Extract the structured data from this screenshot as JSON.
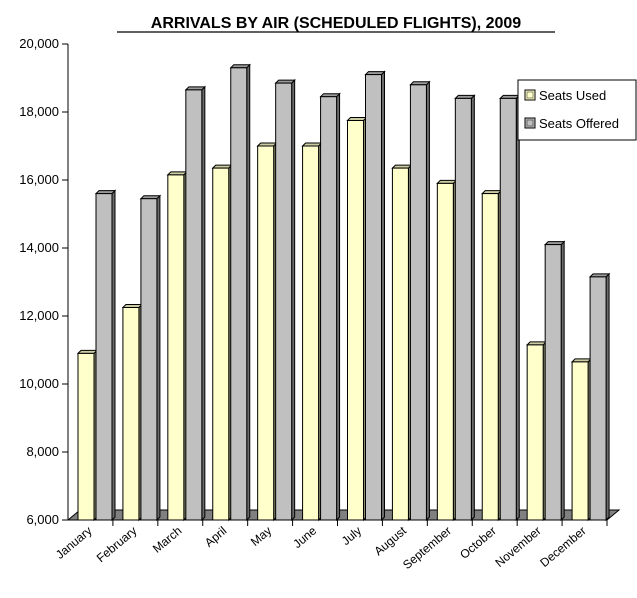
{
  "chart_data": {
    "type": "bar",
    "title": "ARRIVALS BY AIR (SCHEDULED FLIGHTS), 2009",
    "xlabel": "",
    "ylabel": "",
    "ylim": [
      6000,
      20000
    ],
    "yticks": [
      6000,
      8000,
      10000,
      12000,
      14000,
      16000,
      18000,
      20000
    ],
    "ytick_labels": [
      "6,000",
      "8,000",
      "10,000",
      "12,000",
      "14,000",
      "16,000",
      "18,000",
      "20,000"
    ],
    "categories": [
      "January",
      "February",
      "March",
      "April",
      "May",
      "June",
      "July",
      "August",
      "September",
      "October",
      "November",
      "December"
    ],
    "series": [
      {
        "name": "Seats Used",
        "color": "#FFFFCC",
        "values": [
          10900,
          12250,
          16150,
          16350,
          17000,
          17000,
          17750,
          16350,
          15900,
          15600,
          11150,
          10650
        ]
      },
      {
        "name": "Seats Offered",
        "color": "#C0C0C0",
        "values": [
          15600,
          15450,
          18650,
          19300,
          18850,
          18450,
          19100,
          18800,
          18400,
          18400,
          14100,
          13150
        ]
      }
    ],
    "grid": false,
    "legend_position": "right",
    "style": "3d-bar"
  }
}
